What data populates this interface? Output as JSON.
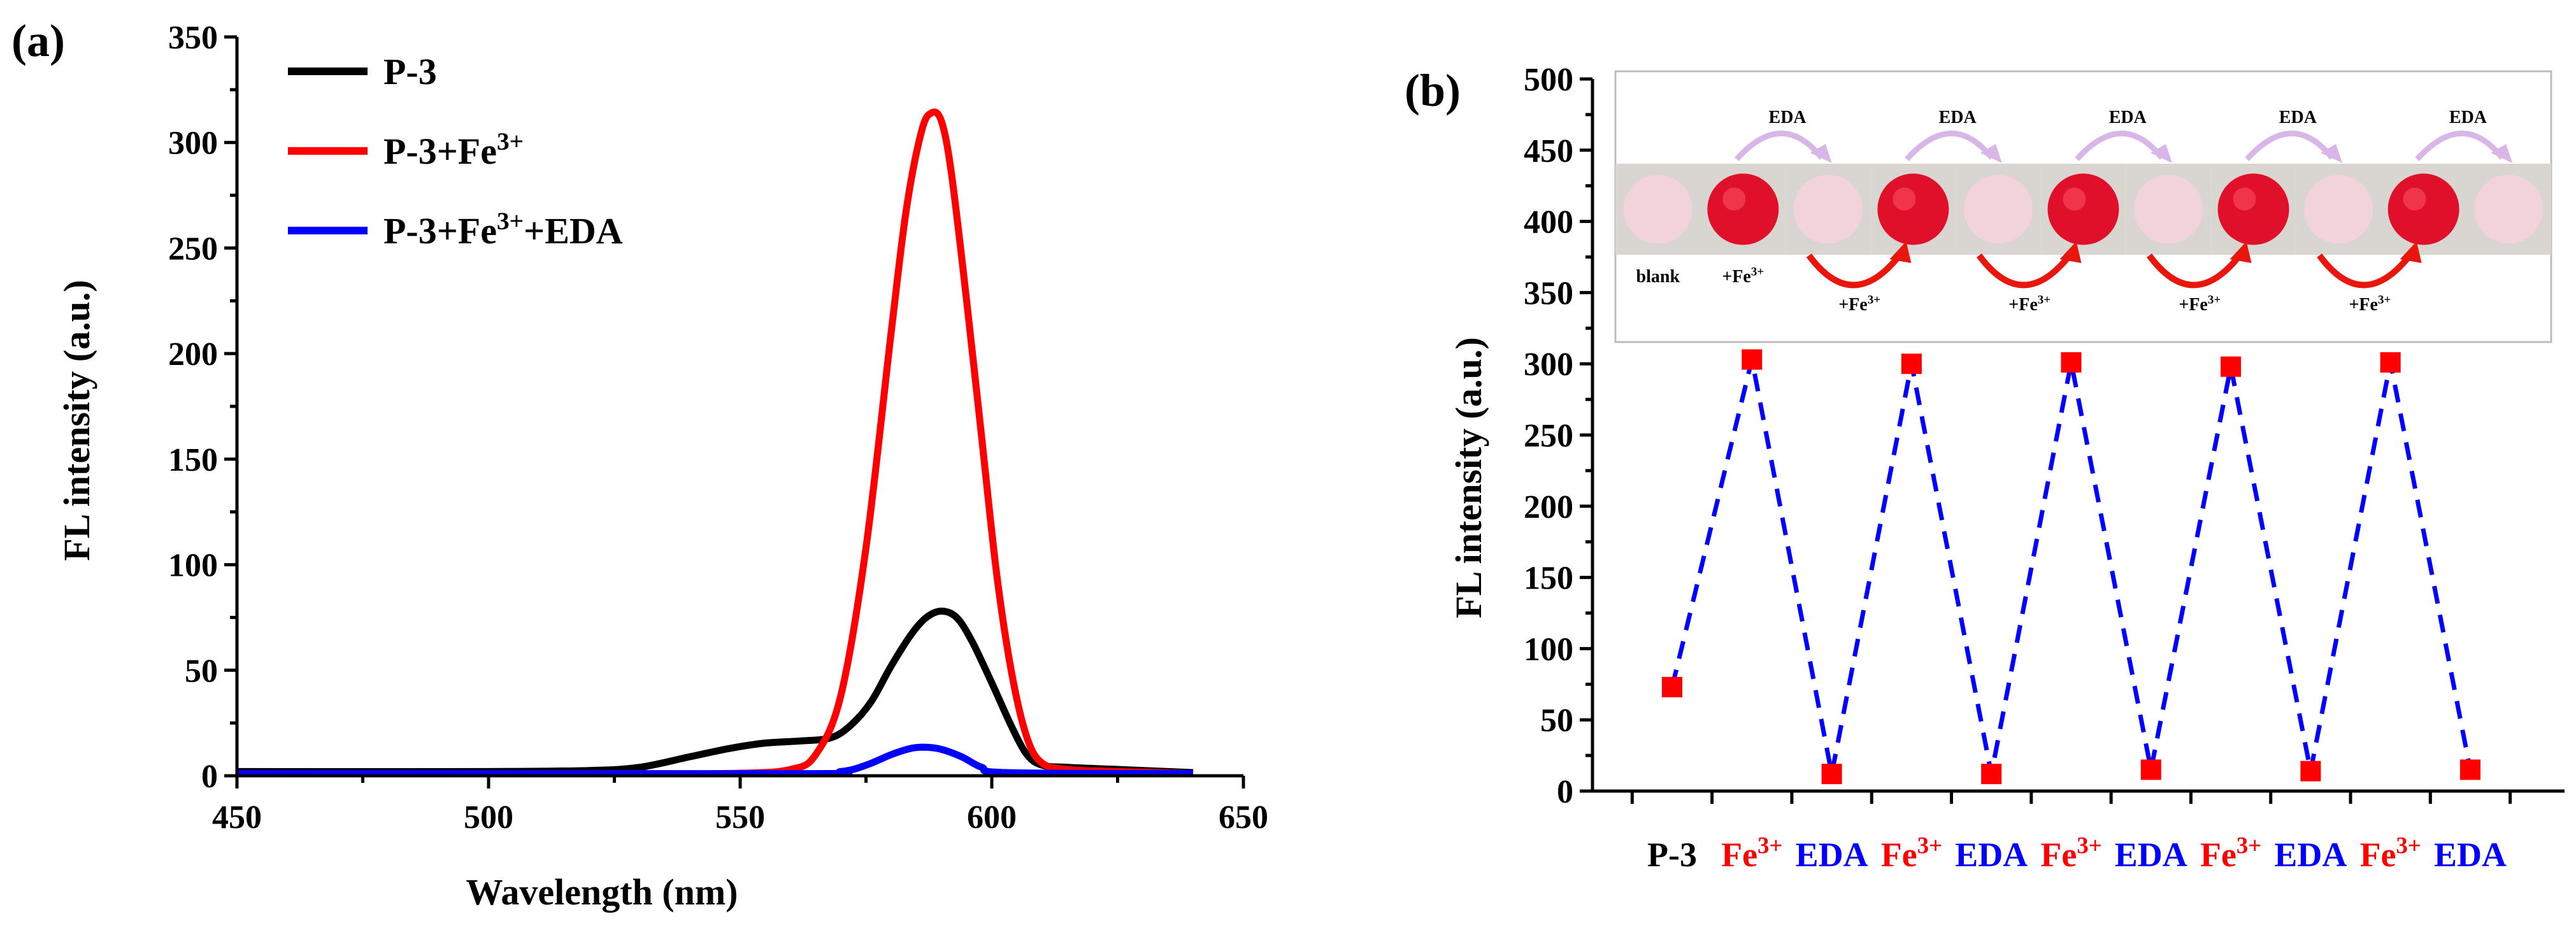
{
  "chart_data": [
    {
      "panel": "(a)",
      "type": "line",
      "xlabel": "Wavelength (nm)",
      "ylabel": "FL intensity (a.u.)",
      "xlim": [
        450,
        650
      ],
      "ylim": [
        0,
        350
      ],
      "xticks": [
        450,
        500,
        550,
        600,
        650
      ],
      "yticks": [
        0,
        50,
        100,
        150,
        200,
        250,
        300,
        350
      ],
      "legend_position": "top-left",
      "series": [
        {
          "name": "P-3",
          "legend_base": "P-3",
          "legend_sup": "",
          "legend_suffix": "",
          "color": "#000000",
          "points": [
            [
              450,
              2
            ],
            [
              500,
              2
            ],
            [
              520,
              2.5
            ],
            [
              530,
              4
            ],
            [
              540,
              9
            ],
            [
              548,
              13
            ],
            [
              555,
              15.5
            ],
            [
              562,
              16.5
            ],
            [
              568,
              18
            ],
            [
              572,
              24
            ],
            [
              576,
              35
            ],
            [
              580,
              52
            ],
            [
              584,
              67
            ],
            [
              587,
              75
            ],
            [
              590,
              78
            ],
            [
              593,
              75
            ],
            [
              596,
              64
            ],
            [
              600,
              44
            ],
            [
              604,
              23
            ],
            [
              607,
              10
            ],
            [
              610,
              5
            ],
            [
              615,
              4
            ],
            [
              625,
              3
            ],
            [
              640,
              1.5
            ]
          ]
        },
        {
          "name": "P-3+Fe3+",
          "legend_base": "P-3+Fe",
          "legend_sup": "3+",
          "legend_suffix": "",
          "color": "#ff0000",
          "points": [
            [
              450,
              1
            ],
            [
              530,
              1
            ],
            [
              550,
              1.2
            ],
            [
              560,
              3
            ],
            [
              565,
              10
            ],
            [
              570,
              38
            ],
            [
              575,
              108
            ],
            [
              580,
              210
            ],
            [
              583,
              268
            ],
            [
              586,
              305
            ],
            [
              588,
              314
            ],
            [
              590,
              310
            ],
            [
              592,
              285
            ],
            [
              595,
              225
            ],
            [
              598,
              160
            ],
            [
              601,
              95
            ],
            [
              604,
              48
            ],
            [
              607,
              18
            ],
            [
              610,
              6
            ],
            [
              615,
              3
            ],
            [
              625,
              2
            ],
            [
              640,
              1
            ]
          ]
        },
        {
          "name": "P-3+Fe3++EDA",
          "legend_base": "P-3+Fe",
          "legend_sup": "3+",
          "legend_suffix": "+EDA",
          "color": "#0000ff",
          "points": [
            [
              450,
              1
            ],
            [
              560,
              1
            ],
            [
              570,
              2
            ],
            [
              575,
              5
            ],
            [
              580,
              10
            ],
            [
              584,
              13
            ],
            [
              587,
              13.5
            ],
            [
              590,
              12.5
            ],
            [
              594,
              9
            ],
            [
              598,
              4
            ],
            [
              603,
              1.5
            ],
            [
              640,
              1
            ]
          ]
        }
      ]
    },
    {
      "panel": "(b)",
      "type": "scatter",
      "ylabel": "FL intensity (a.u.)",
      "ylim": [
        0,
        500
      ],
      "yticks": [
        0,
        50,
        100,
        150,
        200,
        250,
        300,
        350,
        400,
        450,
        500
      ],
      "categories": [
        "P-3",
        "Fe3+",
        "EDA",
        "Fe3+",
        "EDA",
        "Fe3+",
        "EDA",
        "Fe3+",
        "EDA",
        "Fe3+",
        "EDA"
      ],
      "category_labels": [
        {
          "base": "P-3",
          "sup": "",
          "color": "#000000"
        },
        {
          "base": "Fe",
          "sup": "3+",
          "color": "#ff0000"
        },
        {
          "base": "EDA",
          "sup": "",
          "color": "#0000ff"
        },
        {
          "base": "Fe",
          "sup": "3+",
          "color": "#ff0000"
        },
        {
          "base": "EDA",
          "sup": "",
          "color": "#0000ff"
        },
        {
          "base": "Fe",
          "sup": "3+",
          "color": "#ff0000"
        },
        {
          "base": "EDA",
          "sup": "",
          "color": "#0000ff"
        },
        {
          "base": "Fe",
          "sup": "3+",
          "color": "#ff0000"
        },
        {
          "base": "EDA",
          "sup": "",
          "color": "#0000ff"
        },
        {
          "base": "Fe",
          "sup": "3+",
          "color": "#ff0000"
        },
        {
          "base": "EDA",
          "sup": "",
          "color": "#0000ff"
        }
      ],
      "values": [
        73,
        303,
        12,
        300,
        12,
        301,
        15,
        298,
        14,
        301,
        15
      ],
      "marker_color": "#ff0000",
      "line_color": "#0000ff",
      "line_style": "dashed",
      "inset": {
        "description": "photo strip of P-3 test papers",
        "sample_labels": [
          "blank",
          "+Fe3+"
        ],
        "eda_label": "EDA",
        "fe_label": "+Fe3+",
        "label_base": "+Fe",
        "label_sup": "3+",
        "samples": [
          "pale",
          "red",
          "pale",
          "red",
          "pale",
          "red",
          "pale",
          "red",
          "pale",
          "red",
          "pale"
        ],
        "eda_arrow_count": 5,
        "fe_arrow_count": 4
      }
    }
  ],
  "colors": {
    "axis": "#000000",
    "pale_dot": "#f2d3da",
    "red_dot": "#e0102a",
    "photo_bg": "#d9d6d2"
  }
}
